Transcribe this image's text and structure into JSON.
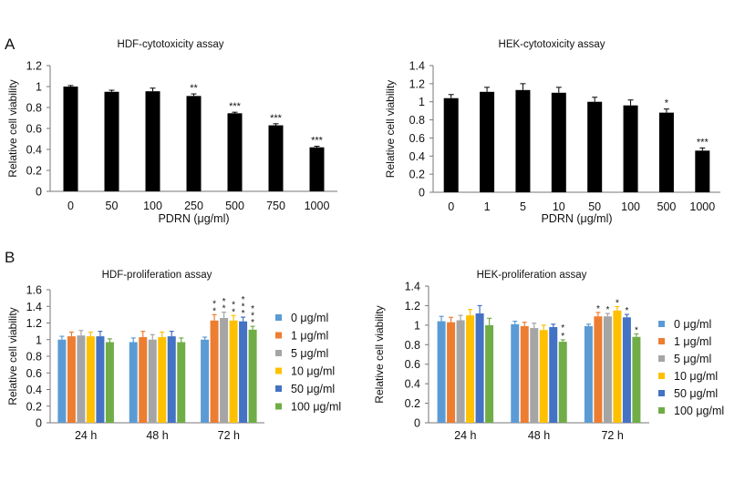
{
  "panel_labels": [
    "A",
    "B"
  ],
  "legend": {
    "entries": [
      "0 μg/ml",
      "1 μg/ml",
      "5 μg/ml",
      "10 μg/ml",
      "50 μg/ml",
      "100 μg/ml"
    ],
    "colors": [
      "#5b9bd5",
      "#ed7d31",
      "#a5a5a5",
      "#ffc000",
      "#4472c4",
      "#70ad47"
    ]
  },
  "chart_data": [
    {
      "type": "bar",
      "title": "HDF-cytotoxicity assay",
      "xlabel": "PDRN (μg/ml)",
      "ylabel": "Relative cell viability",
      "ylim": [
        0,
        1.2
      ],
      "yticks": [
        "0",
        "0.2",
        "0.4",
        "0.6",
        "0.8",
        "1",
        "1.2"
      ],
      "categories": [
        "0",
        "50",
        "100",
        "250",
        "500",
        "750",
        "1000"
      ],
      "values": [
        1.0,
        0.95,
        0.955,
        0.91,
        0.745,
        0.63,
        0.42
      ],
      "errors": [
        0.01,
        0.015,
        0.03,
        0.02,
        0.01,
        0.015,
        0.01
      ],
      "significance": [
        "",
        "",
        "",
        "**",
        "***",
        "***",
        "***"
      ],
      "color": "#000000"
    },
    {
      "type": "bar",
      "title": "HEK-cytotoxicity assay",
      "xlabel": "PDRN (μg/ml)",
      "ylabel": "Relative cell viability",
      "ylim": [
        0,
        1.4
      ],
      "yticks": [
        "0",
        "0.2",
        "0.4",
        "0.6",
        "0.8",
        "1",
        "1.2",
        "1.4"
      ],
      "categories": [
        "0",
        "1",
        "5",
        "10",
        "50",
        "100",
        "500",
        "1000"
      ],
      "values": [
        1.04,
        1.11,
        1.13,
        1.1,
        1.0,
        0.96,
        0.88,
        0.46
      ],
      "errors": [
        0.04,
        0.05,
        0.07,
        0.06,
        0.05,
        0.06,
        0.04,
        0.03
      ],
      "significance": [
        "",
        "",
        "",
        "",
        "",
        "",
        "*",
        "***"
      ],
      "color": "#000000"
    },
    {
      "type": "bar",
      "title": "HDF-proliferation assay",
      "ylabel": "Relative cell viability",
      "ylim": [
        0,
        1.6
      ],
      "yticks": [
        "0",
        "0.2",
        "0.4",
        "0.6",
        "0.8",
        "1",
        "1.2",
        "1.4",
        "1.6"
      ],
      "categories": [
        "24 h",
        "48 h",
        "72 h"
      ],
      "series": [
        {
          "name": "0 μg/ml",
          "values": [
            1.0,
            0.97,
            1.0
          ],
          "errors": [
            0.04,
            0.05,
            0.03
          ],
          "significance": [
            "",
            "",
            ""
          ]
        },
        {
          "name": "1 μg/ml",
          "values": [
            1.04,
            1.03,
            1.23
          ],
          "errors": [
            0.05,
            0.07,
            0.07
          ],
          "significance": [
            "",
            "",
            "**"
          ]
        },
        {
          "name": "5 μg/ml",
          "values": [
            1.05,
            1.0,
            1.26
          ],
          "errors": [
            0.06,
            0.06,
            0.07
          ],
          "significance": [
            "",
            "",
            "**"
          ]
        },
        {
          "name": "10 μg/ml",
          "values": [
            1.04,
            1.03,
            1.23
          ],
          "errors": [
            0.05,
            0.06,
            0.06
          ],
          "significance": [
            "",
            "",
            "**"
          ]
        },
        {
          "name": "50 μg/ml",
          "values": [
            1.04,
            1.04,
            1.22
          ],
          "errors": [
            0.06,
            0.06,
            0.05
          ],
          "significance": [
            "",
            "",
            "***"
          ]
        },
        {
          "name": "100 μg/ml",
          "values": [
            0.97,
            0.97,
            1.12
          ],
          "errors": [
            0.04,
            0.05,
            0.04
          ],
          "significance": [
            "",
            "",
            "***"
          ]
        }
      ]
    },
    {
      "type": "bar",
      "title": "HEK-proliferation assay",
      "ylabel": "Relative cell viability",
      "ylim": [
        0,
        1.4
      ],
      "yticks": [
        "0",
        "0.2",
        "0.4",
        "0.6",
        "0.8",
        "1",
        "1.2",
        "1.4"
      ],
      "categories": [
        "24 h",
        "48 h",
        "72 h"
      ],
      "series": [
        {
          "name": "0 μg/ml",
          "values": [
            1.04,
            1.01,
            0.99
          ],
          "errors": [
            0.05,
            0.03,
            0.02
          ],
          "significance": [
            "",
            "",
            ""
          ]
        },
        {
          "name": "1 μg/ml",
          "values": [
            1.03,
            0.99,
            1.09
          ],
          "errors": [
            0.05,
            0.04,
            0.04
          ],
          "significance": [
            "",
            "",
            "*"
          ]
        },
        {
          "name": "5 μg/ml",
          "values": [
            1.05,
            0.97,
            1.09
          ],
          "errors": [
            0.05,
            0.05,
            0.03
          ],
          "significance": [
            "",
            "",
            "*"
          ]
        },
        {
          "name": "10 μg/ml",
          "values": [
            1.1,
            0.95,
            1.15
          ],
          "errors": [
            0.06,
            0.05,
            0.04
          ],
          "significance": [
            "",
            "",
            "*"
          ]
        },
        {
          "name": "50 μg/ml",
          "values": [
            1.12,
            0.98,
            1.08
          ],
          "errors": [
            0.08,
            0.03,
            0.03
          ],
          "significance": [
            "",
            "",
            "*"
          ]
        },
        {
          "name": "100 μg/ml",
          "values": [
            1.0,
            0.83,
            0.88
          ],
          "errors": [
            0.07,
            0.02,
            0.03
          ],
          "significance": [
            "",
            "**",
            "*"
          ]
        }
      ]
    }
  ]
}
